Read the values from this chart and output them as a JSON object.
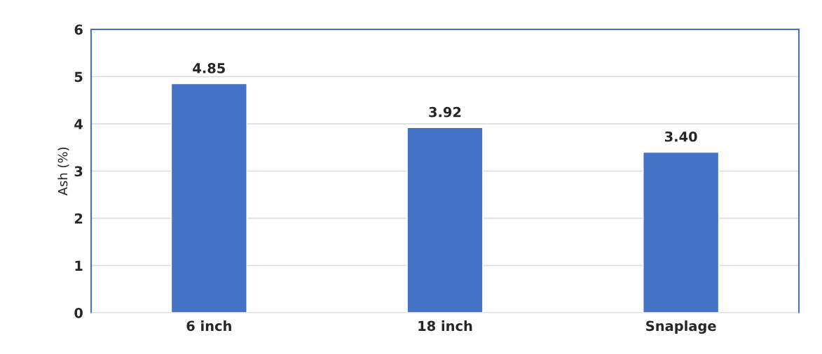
{
  "chart_data": {
    "type": "bar",
    "ylabel": "Ash (%)",
    "categories": [
      "6 inch",
      "18 inch",
      "Snaplage"
    ],
    "values": [
      4.85,
      3.92,
      3.4
    ],
    "value_labels": [
      "4.85",
      "3.92",
      "3.40"
    ],
    "color": "#4472c4",
    "ylim": [
      0,
      6
    ],
    "yticks": [
      0,
      1,
      2,
      3,
      4,
      5,
      6
    ],
    "grid": "y"
  }
}
